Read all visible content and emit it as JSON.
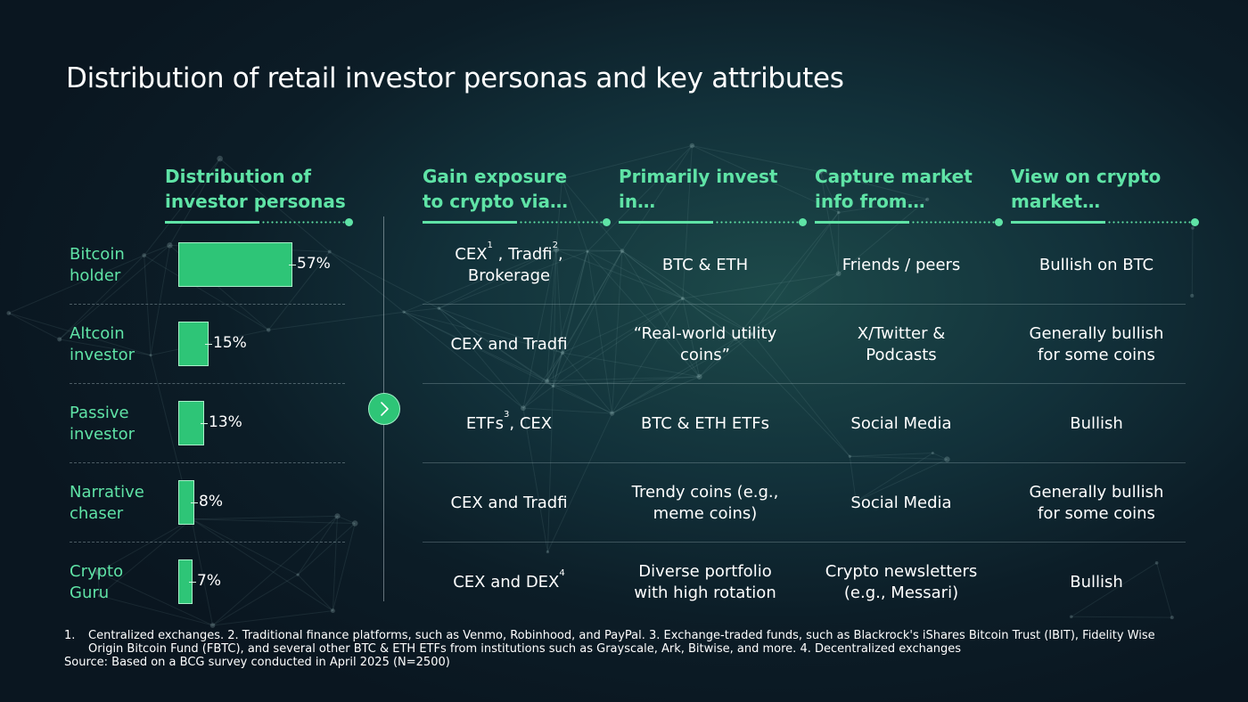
{
  "title": "Distribution of retail investor personas and key attributes",
  "colors": {
    "accent": "#5fe3a6",
    "bar": "#2ec577",
    "background": "#0c1d27"
  },
  "columns": [
    {
      "key": "distribution",
      "label": "Distribution of\ninvestor personas"
    },
    {
      "key": "exposure",
      "label": "Gain exposure\nto crypto via…"
    },
    {
      "key": "invest",
      "label": "Primarily invest\nin…"
    },
    {
      "key": "info",
      "label": "Capture market\ninfo from…"
    },
    {
      "key": "view",
      "label": "View on crypto\nmarket…"
    }
  ],
  "chart_data": {
    "type": "bar",
    "orientation": "horizontal",
    "title": "Distribution of investor personas",
    "categories": [
      "Bitcoin holder",
      "Altcoin investor",
      "Passive investor",
      "Narrative chaser",
      "Crypto Guru"
    ],
    "values": [
      57,
      15,
      13,
      8,
      7
    ],
    "value_labels": [
      "57%",
      "15%",
      "13%",
      "8%",
      "7%"
    ],
    "unit": "%"
  },
  "personas": [
    {
      "name": "Bitcoin\nholder",
      "pct_label": "57%",
      "exposure": [
        {
          "t": "CEX"
        },
        {
          "sup": "1"
        },
        {
          "t": " , Tradfi"
        },
        {
          "sup": "2"
        },
        {
          "t": ",\nBrokerage"
        }
      ],
      "invest": "BTC & ETH",
      "info": "Friends / peers",
      "view": "Bullish on BTC"
    },
    {
      "name": "Altcoin\ninvestor",
      "pct_label": "15%",
      "exposure": [
        {
          "t": "CEX and Tradfi"
        }
      ],
      "invest": "“Real-world utility\ncoins”",
      "info": "X/Twitter &\nPodcasts",
      "view": "Generally bullish\nfor some coins"
    },
    {
      "name": "Passive\ninvestor",
      "pct_label": "13%",
      "exposure": [
        {
          "t": "ETFs"
        },
        {
          "sup": "3"
        },
        {
          "t": ", CEX"
        }
      ],
      "invest": "BTC & ETH ETFs",
      "info": "Social Media",
      "view": "Bullish"
    },
    {
      "name": "Narrative\nchaser",
      "pct_label": "8%",
      "exposure": [
        {
          "t": "CEX and Tradfi"
        }
      ],
      "invest": "Trendy coins (e.g.,\nmeme coins)",
      "info": "Social Media",
      "view": "Generally bullish\nfor some coins"
    },
    {
      "name": "Crypto\nGuru",
      "pct_label": "7%",
      "exposure": [
        {
          "t": "CEX and DEX"
        },
        {
          "sup": "4"
        }
      ],
      "invest": "Diverse portfolio\nwith high rotation",
      "info": "Crypto newsletters\n(e.g., Messari)",
      "view": "Bullish"
    }
  ],
  "footnotes": {
    "number": "1.",
    "text": "Centralized exchanges. 2. Traditional finance platforms, such as Venmo, Robinhood, and PayPal. 3. Exchange-traded funds, such as Blackrock's iShares Bitcoin Trust (IBIT), Fidelity Wise Origin Bitcoin Fund (FBTC), and several other BTC & ETH ETFs from institutions such as Grayscale, Ark, Bitwise, and more. 4.  Decentralized exchanges",
    "source": "Source: Based on a BCG survey conducted in April 2025 (N=2500)"
  },
  "icons": {
    "next_button": "chevron-right-icon"
  }
}
